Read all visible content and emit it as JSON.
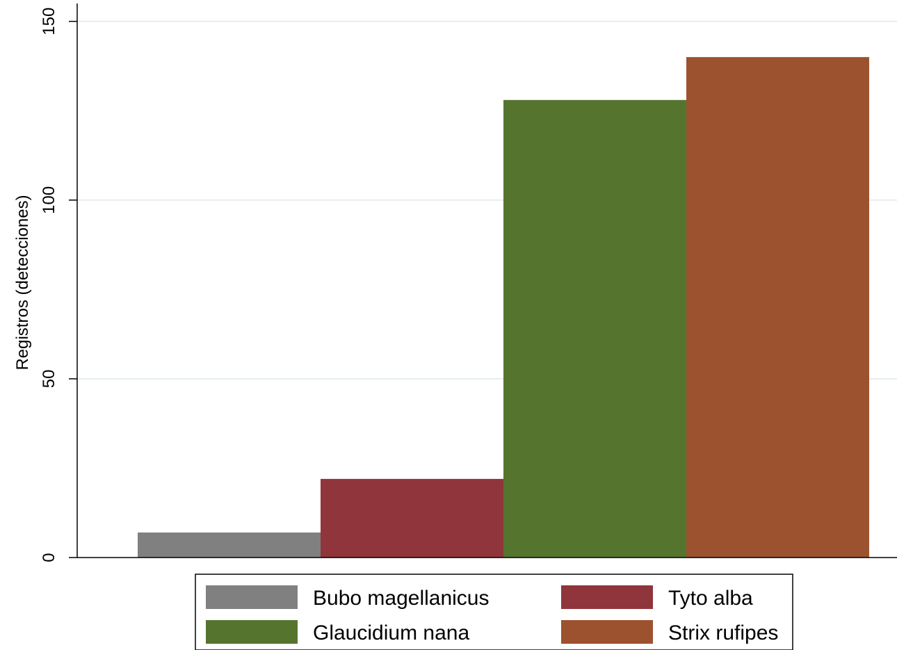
{
  "chart_data": {
    "type": "bar",
    "title": "",
    "xlabel": "",
    "ylabel": "Registros (detecciones)",
    "ylim": [
      0,
      155
    ],
    "yticks": [
      0,
      50,
      100,
      150
    ],
    "grid": true,
    "legend_position": "bottom",
    "categories": [
      ""
    ],
    "series": [
      {
        "name": "Bubo magellanicus",
        "values": [
          7
        ],
        "color": "#808080"
      },
      {
        "name": "Tyto alba",
        "values": [
          22
        ],
        "color": "#90353b"
      },
      {
        "name": "Glaucidium nana",
        "values": [
          128
        ],
        "color": "#55752f"
      },
      {
        "name": "Strix rufipes",
        "values": [
          140
        ],
        "color": "#9c522e"
      }
    ]
  }
}
